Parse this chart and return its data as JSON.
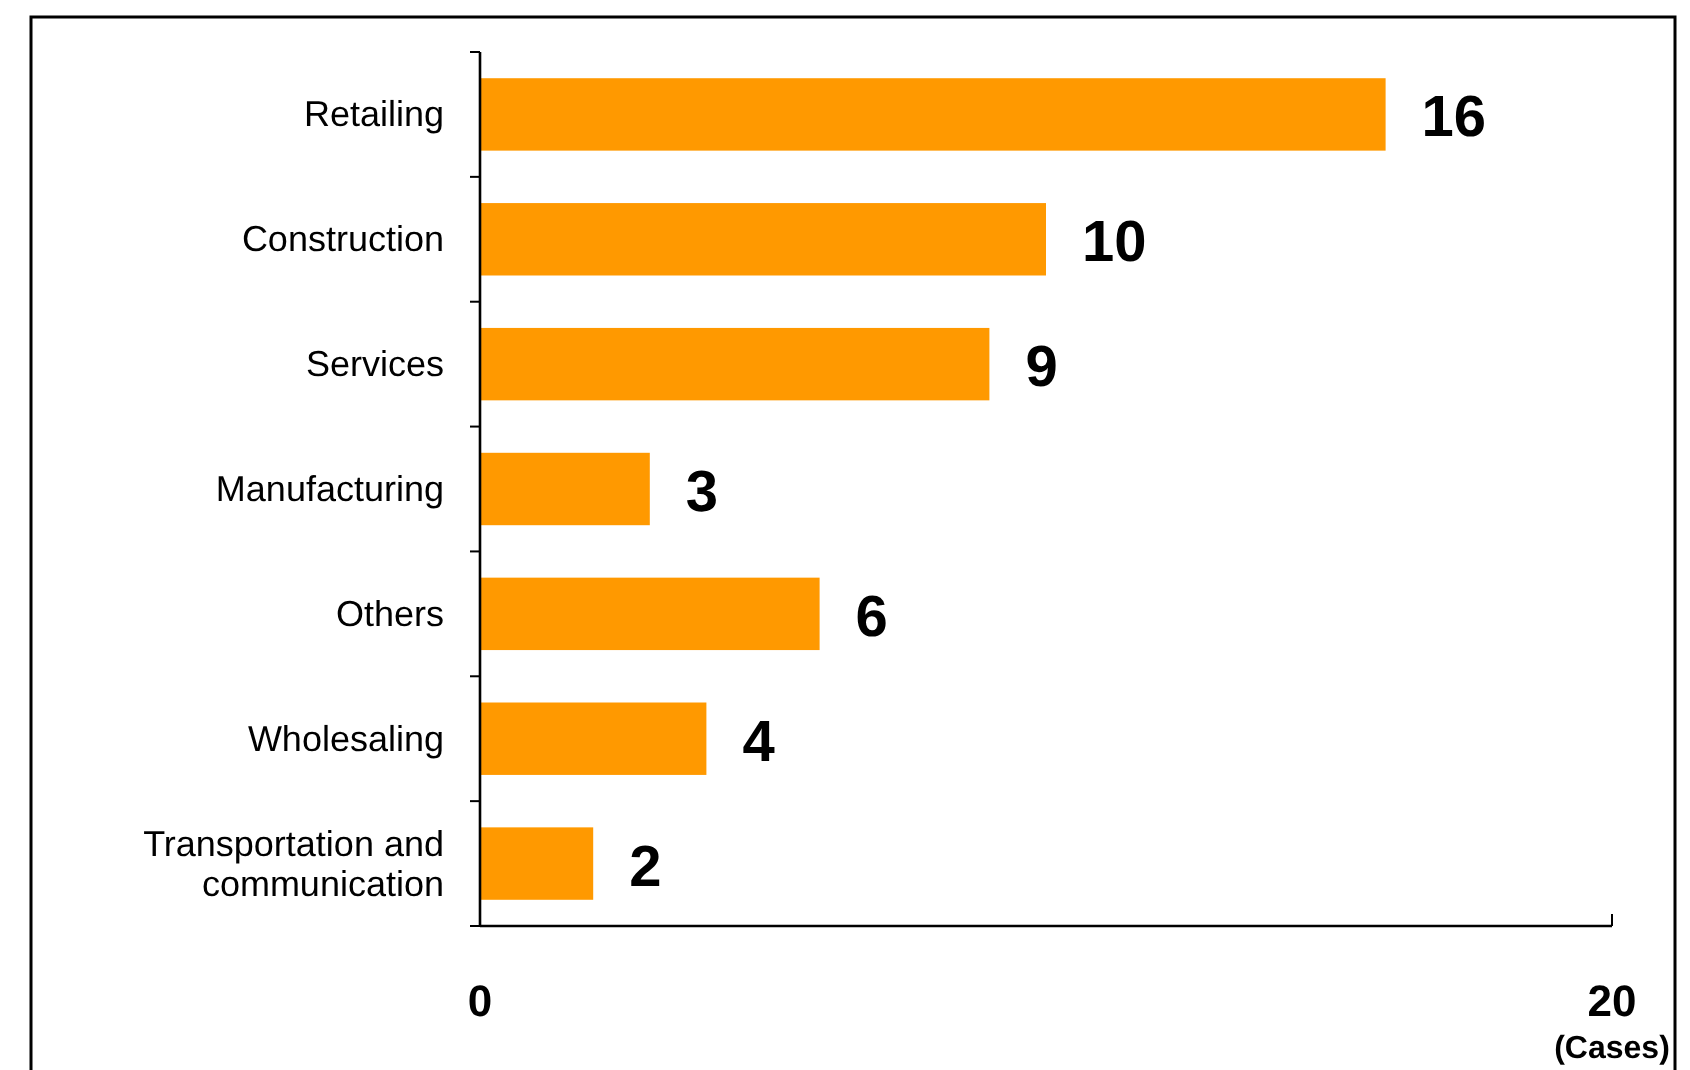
{
  "chart_data": {
    "type": "bar",
    "orientation": "horizontal",
    "xlabel": "(Cases)",
    "categories": [
      "Retailing",
      "Construction",
      "Services",
      "Manufacturing",
      "Others",
      "Wholesaling",
      "Transportation and communication"
    ],
    "values": [
      16,
      10,
      9,
      3,
      6,
      4,
      2
    ],
    "color": "#ff9900",
    "data_labels": true,
    "xlim": [
      0,
      20
    ],
    "xticks": [
      0,
      20
    ]
  }
}
